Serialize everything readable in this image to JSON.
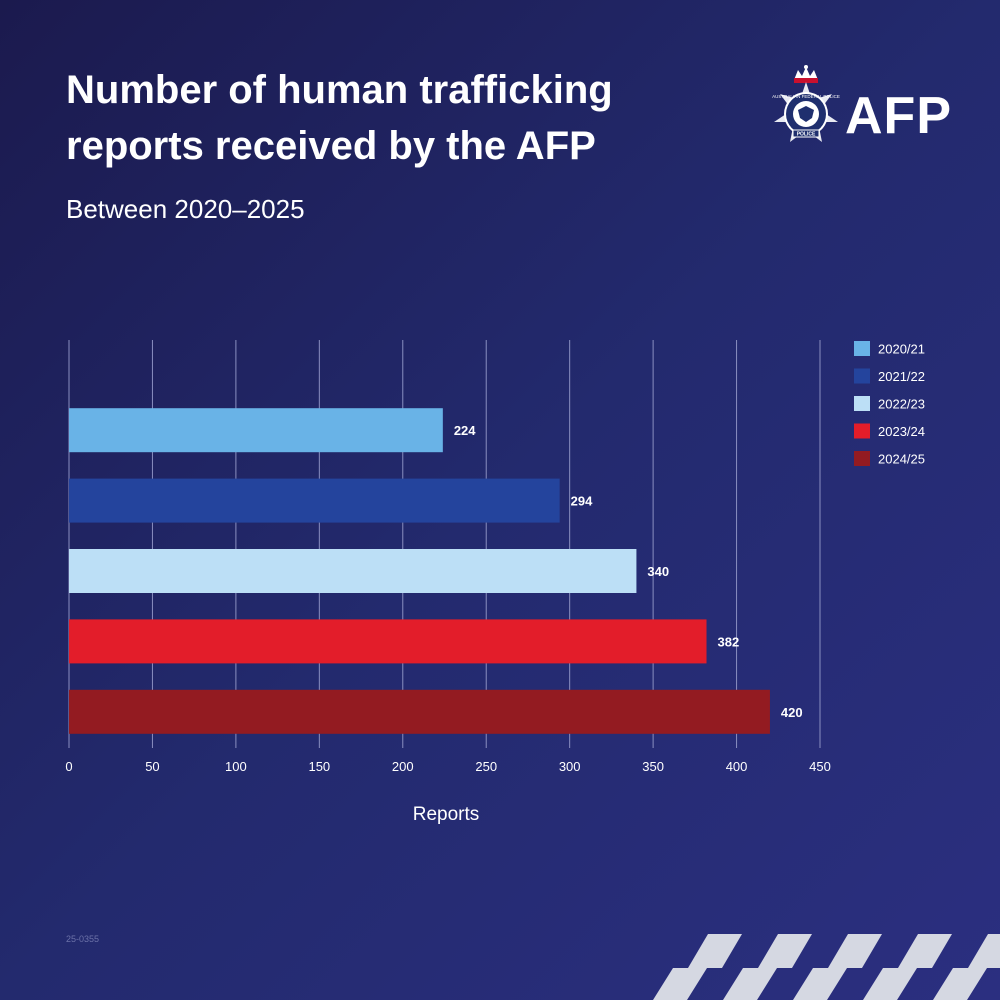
{
  "header": {
    "title": "Number of human trafficking reports received by the AFP",
    "subtitle": "Between 2020–2025"
  },
  "logo": {
    "text": "AFP",
    "badge_text": "AUSTRALIAN FEDERAL POLICE",
    "badge_ribbon": "POLICE"
  },
  "footer": {
    "code": "25-0355"
  },
  "colors": {
    "text": "#ffffff",
    "grid": "#8a8fc0",
    "checker": "#d5d8e2"
  },
  "chart_data": {
    "type": "bar",
    "orientation": "horizontal",
    "title": "Number of human trafficking reports received by the AFP",
    "subtitle": "Between 2020–2025",
    "xlabel": "Reports",
    "ylabel": "",
    "xlim": [
      0,
      450
    ],
    "xticks": [
      0,
      50,
      100,
      150,
      200,
      250,
      300,
      350,
      400,
      450
    ],
    "grid": true,
    "legend_position": "top-right",
    "series": [
      {
        "name": "2020/21",
        "value": 224,
        "color": "#69b3e7"
      },
      {
        "name": "2021/22",
        "value": 294,
        "color": "#24449d"
      },
      {
        "name": "2022/23",
        "value": 340,
        "color": "#bcdff6"
      },
      {
        "name": "2023/24",
        "value": 382,
        "color": "#e31d2a"
      },
      {
        "name": "2024/25",
        "value": 420,
        "color": "#931b21"
      }
    ]
  }
}
